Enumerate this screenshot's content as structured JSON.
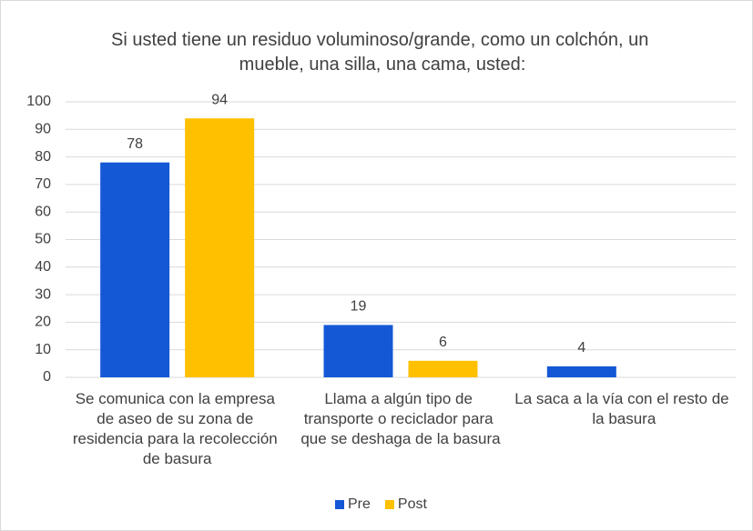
{
  "chart_data": {
    "type": "bar",
    "title": "Si usted tiene un residuo voluminoso/grande,  como un colchón, un mueble, una silla, una cama, usted:",
    "categories": [
      "Se comunica con la empresa de aseo de su zona de residencia para la recolección de basura",
      "Llama a algún tipo de transporte o reciclador para que se deshaga de la basura",
      "La saca a la vía con el resto de la basura"
    ],
    "series": [
      {
        "name": "Pre",
        "color": "#1558d6",
        "values": [
          78,
          19,
          4
        ]
      },
      {
        "name": "Post",
        "color": "#ffc000",
        "values": [
          94,
          6,
          null
        ]
      }
    ],
    "ylim": [
      0,
      100
    ],
    "yticks": [
      0,
      10,
      20,
      30,
      40,
      50,
      60,
      70,
      80,
      90,
      100
    ],
    "grid": true,
    "legend": "bottom"
  }
}
